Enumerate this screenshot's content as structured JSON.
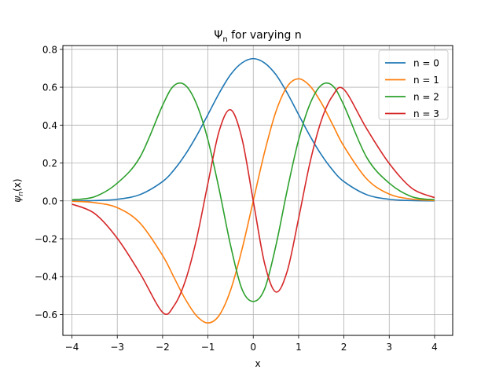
{
  "chart_data": {
    "type": "line",
    "title": "Ψₙ for varying n",
    "title_main": "Ψ",
    "title_sub": "n",
    "title_rest": " for varying n",
    "xlabel": "x",
    "ylabel_main": "ψ",
    "ylabel_sub": "n",
    "ylabel_rest": "(x)",
    "xlim": [
      -4.2,
      4.4
    ],
    "ylim": [
      -0.71,
      0.82
    ],
    "xticks": [
      -4,
      -3,
      -2,
      -1,
      0,
      1,
      2,
      3,
      4
    ],
    "xtick_labels": [
      "−4",
      "−3",
      "−2",
      "−1",
      "0",
      "1",
      "2",
      "3",
      "4"
    ],
    "yticks": [
      -0.6,
      -0.4,
      -0.2,
      0.0,
      0.2,
      0.4,
      0.6,
      0.8
    ],
    "ytick_labels": [
      "−0.6",
      "−0.4",
      "−0.2",
      "0.0",
      "0.2",
      "0.4",
      "0.6",
      "0.8"
    ],
    "grid": true,
    "legend_position": "top-right",
    "x": [
      -4.0,
      -3.5,
      -3.0,
      -2.5,
      -2.0,
      -1.75,
      -1.5,
      -1.25,
      -1.0,
      -0.75,
      -0.5,
      -0.25,
      0.0,
      0.25,
      0.5,
      0.75,
      1.0,
      1.25,
      1.5,
      1.75,
      2.0,
      2.5,
      3.0,
      3.5,
      4.0
    ],
    "series": [
      {
        "name": "n = 0",
        "color": "#1f77b4",
        "values": [
          0.0003,
          0.0016,
          0.0084,
          0.033,
          0.1019,
          0.163,
          0.2443,
          0.3434,
          0.4556,
          0.5692,
          0.6664,
          0.7281,
          0.7511,
          0.7281,
          0.6664,
          0.5692,
          0.4556,
          0.3434,
          0.2443,
          0.163,
          0.1019,
          0.033,
          0.0084,
          0.0016,
          0.0003
        ]
      },
      {
        "name": "n = 1",
        "color": "#ff7f0e",
        "values": [
          -0.002,
          -0.0094,
          -0.0357,
          -0.1167,
          -0.2883,
          -0.4034,
          -0.5183,
          -0.6071,
          -0.6444,
          -0.6037,
          -0.4712,
          -0.2574,
          0.0,
          0.2574,
          0.4712,
          0.6037,
          0.6444,
          0.6071,
          0.5183,
          0.4034,
          0.2883,
          0.1167,
          0.0357,
          0.0094,
          0.002
        ]
      },
      {
        "name": "n = 2",
        "color": "#2ca02c",
        "values": [
          0.0057,
          0.022,
          0.0936,
          0.2305,
          0.5044,
          0.6081,
          0.6106,
          0.5108,
          0.3221,
          0.0579,
          -0.2356,
          -0.4652,
          -0.5311,
          -0.4652,
          -0.2356,
          0.0579,
          0.3221,
          0.5108,
          0.6106,
          0.6081,
          0.5044,
          0.2305,
          0.0936,
          0.022,
          0.0057
        ]
      },
      {
        "name": "n = 3",
        "color": "#d62728",
        "values": [
          -0.0172,
          -0.0665,
          -0.1975,
          -0.3819,
          -0.5884,
          -0.5542,
          -0.4232,
          -0.2006,
          0.093,
          0.3707,
          0.481,
          0.3296,
          0.0,
          -0.3296,
          -0.481,
          -0.3707,
          -0.093,
          0.2006,
          0.4232,
          0.5542,
          0.5884,
          0.3819,
          0.1975,
          0.0665,
          0.0172
        ]
      }
    ]
  }
}
